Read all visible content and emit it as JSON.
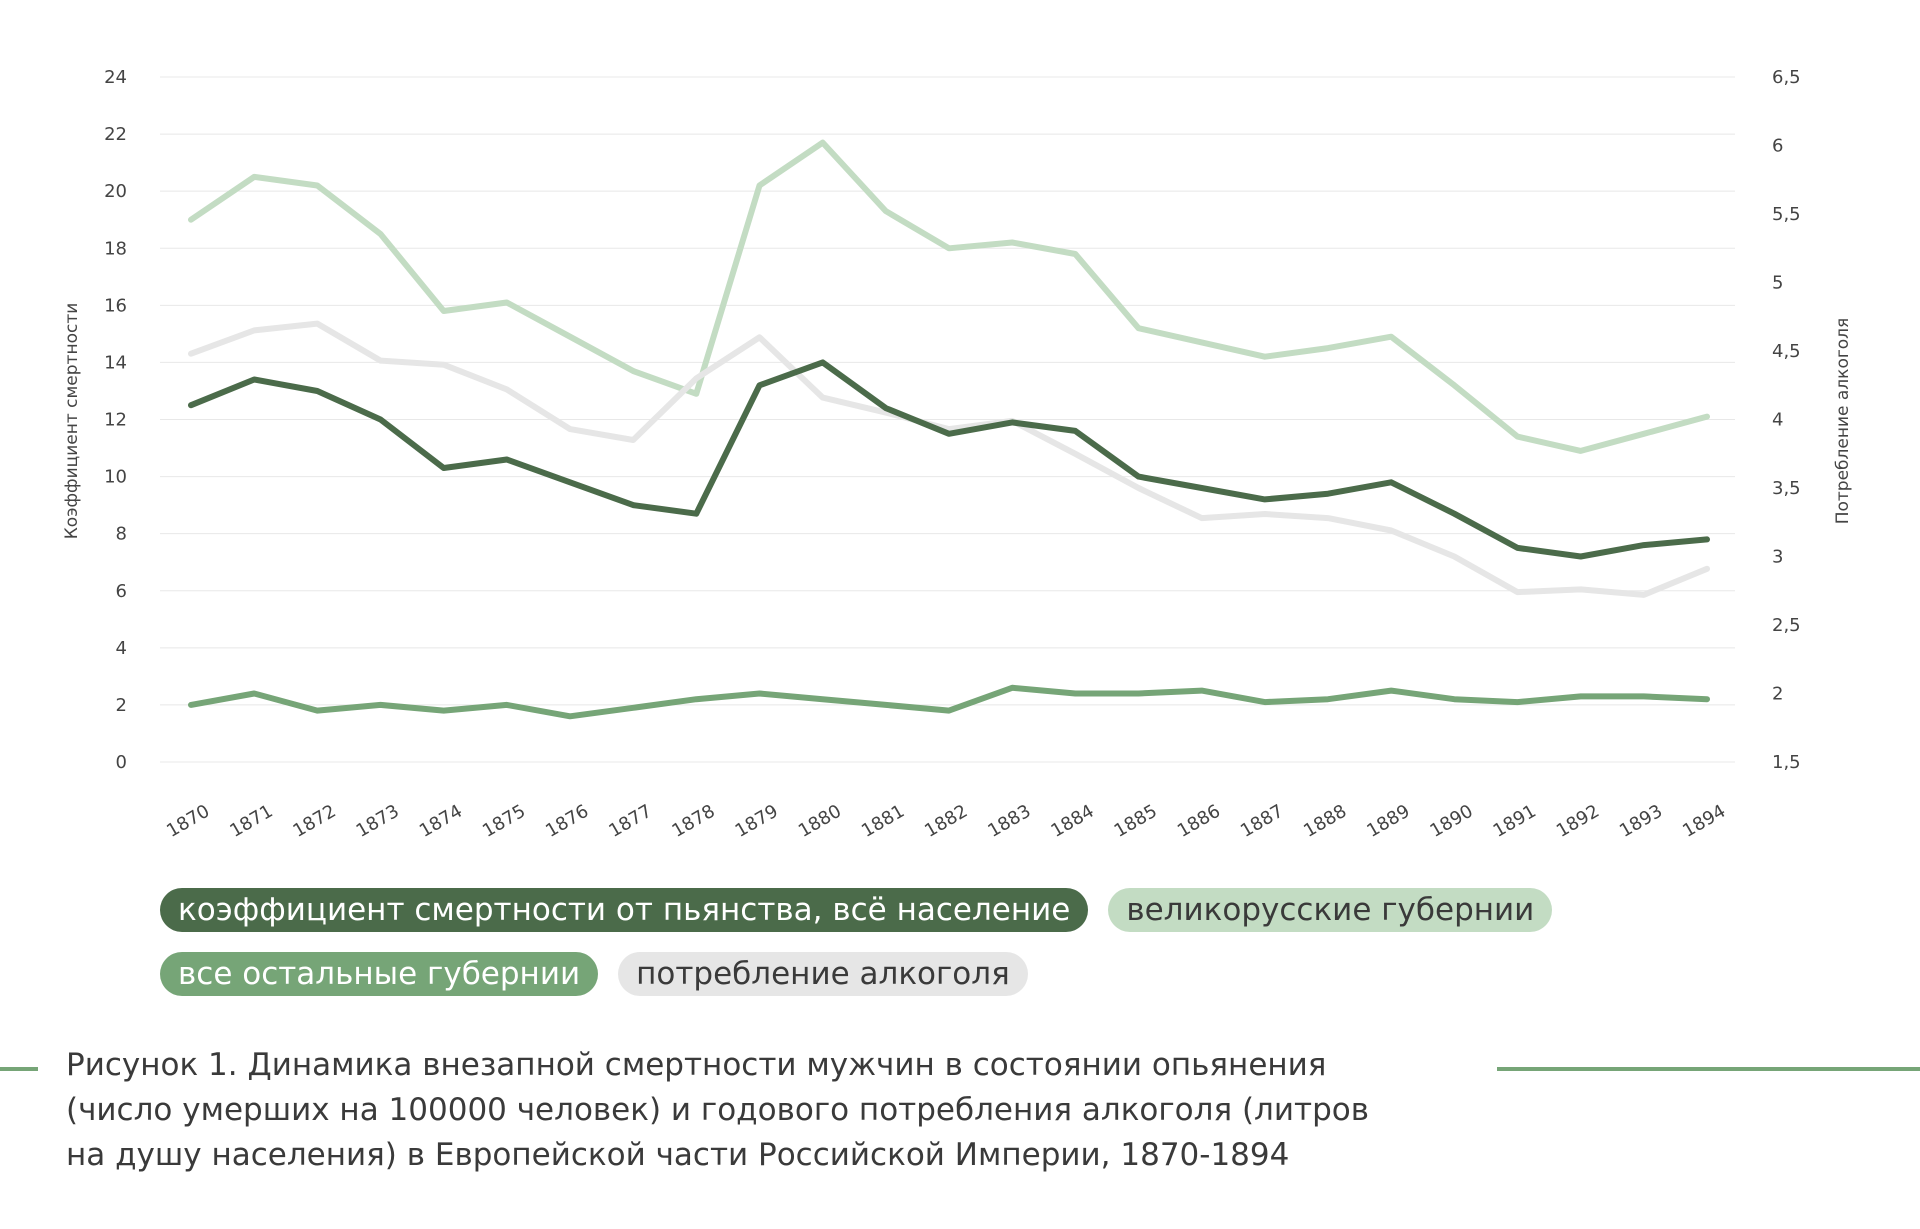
{
  "chart_data": {
    "type": "line",
    "x": [
      1870,
      1871,
      1872,
      1873,
      1874,
      1875,
      1876,
      1877,
      1878,
      1879,
      1880,
      1881,
      1882,
      1883,
      1884,
      1885,
      1886,
      1887,
      1888,
      1889,
      1890,
      1891,
      1892,
      1893,
      1894
    ],
    "x_tick_labels": [
      "1870",
      "1871",
      "1872",
      "1873",
      "1874",
      "1875",
      "1876",
      "1877",
      "1878",
      "1879",
      "1880",
      "1881",
      "1882",
      "1883",
      "1884",
      "1885",
      "1886",
      "1887",
      "1888",
      "1889",
      "1890",
      "1891",
      "1892",
      "1893",
      "1894"
    ],
    "ylabel": "Коэффициент смертности",
    "ylabel_right": "Потребление алкоголя",
    "ylim": [
      0,
      24
    ],
    "ylim_right": [
      1.5,
      6.5
    ],
    "y_ticks": [
      "0",
      "2",
      "4",
      "6",
      "8",
      "10",
      "12",
      "14",
      "16",
      "18",
      "20",
      "22",
      "24"
    ],
    "y_ticks_right": [
      "1,5",
      "2",
      "2,5",
      "3",
      "3,5",
      "4",
      "4,5",
      "5",
      "5,5",
      "6",
      "6,5"
    ],
    "grid": true,
    "legend_position": "bottom",
    "series": [
      {
        "name": "великорусские губернии",
        "axis": "left",
        "color": "#c3dcc3",
        "values": [
          19.0,
          20.5,
          20.2,
          18.5,
          15.8,
          16.1,
          14.9,
          13.7,
          12.9,
          20.2,
          21.7,
          19.3,
          18.0,
          18.2,
          17.8,
          15.2,
          14.7,
          14.2,
          14.5,
          14.9,
          13.2,
          11.4,
          10.9,
          11.5,
          12.1
        ]
      },
      {
        "name": "потребление алкоголя",
        "axis": "right",
        "color": "#e6e6e6",
        "values": [
          4.48,
          4.65,
          4.7,
          4.43,
          4.4,
          4.22,
          3.93,
          3.85,
          4.3,
          4.6,
          4.16,
          4.05,
          3.93,
          3.99,
          3.75,
          3.5,
          3.28,
          3.31,
          3.28,
          3.19,
          3.0,
          2.74,
          2.76,
          2.72,
          2.91
        ]
      },
      {
        "name": "коэффициент смертности от пьянства, всё население",
        "axis": "left",
        "color": "#4b6b4a",
        "values": [
          12.5,
          13.4,
          13.0,
          12.0,
          10.3,
          10.6,
          9.8,
          9.0,
          8.7,
          13.2,
          14.0,
          12.4,
          11.5,
          11.9,
          11.6,
          10.0,
          9.6,
          9.2,
          9.4,
          9.8,
          8.7,
          7.5,
          7.2,
          7.6,
          7.8
        ]
      },
      {
        "name": "все остальные губернии",
        "axis": "left",
        "color": "#76a577",
        "values": [
          2.0,
          2.4,
          1.8,
          2.0,
          1.8,
          2.0,
          1.6,
          1.9,
          2.2,
          2.4,
          2.2,
          2.0,
          1.8,
          2.6,
          2.4,
          2.4,
          2.5,
          2.1,
          2.2,
          2.5,
          2.2,
          2.1,
          2.3,
          2.3,
          2.2
        ]
      }
    ]
  },
  "legend": {
    "dark": "коэффициент смертности от пьянства, всё население",
    "light": "великорусские губернии",
    "mid": "все остальные губернии",
    "gray": "потребление алкоголя"
  },
  "caption": {
    "line1": "Рисунок 1. Динамика внезапной смертности мужчин в состоянии опьянения",
    "line2": "(число умерших на 100000 человек) и годового потребления алкоголя (литров",
    "line3": "на душу населения) в Европейской части Российской Империи, 1870-1894"
  }
}
